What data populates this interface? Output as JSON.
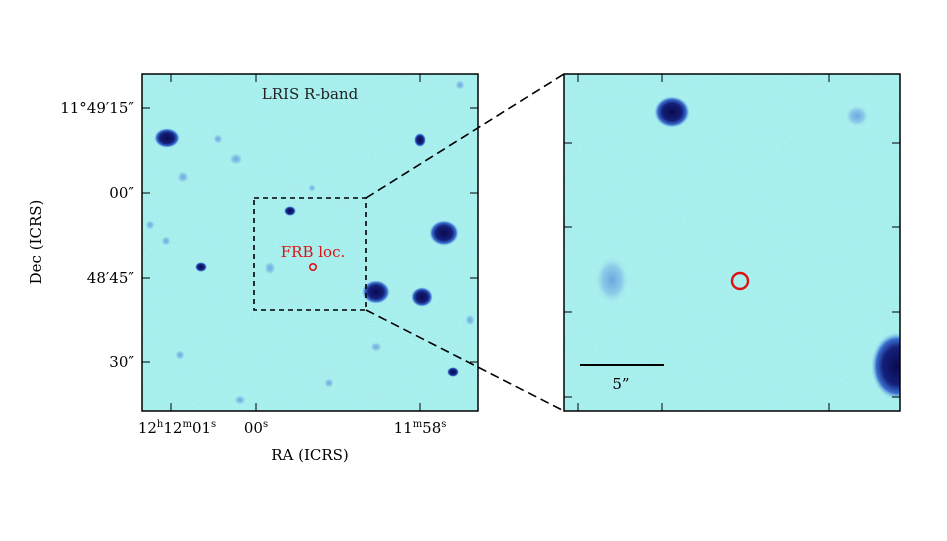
{
  "colors": {
    "background_cyan": "#aaf0ec",
    "star_deep": "#0d0d5c",
    "star_mid": "#1f3fb0",
    "frame": "#000000",
    "frb_red": "#dd1111"
  },
  "left_panel": {
    "band_label": "LRIS R-band",
    "frb_label": "FRB loc.",
    "xlabel": "RA (ICRS)",
    "ylabel": "Dec (ICRS)",
    "ra_ticks": [
      {
        "h": "12",
        "m": "12",
        "s": "01"
      },
      {
        "s": "00"
      },
      {
        "m": "11",
        "s": "58"
      }
    ],
    "dec_ticks": [
      {
        "deg": "11",
        "arcmin": "49",
        "arcsec": "15"
      },
      {
        "arcsec": "00"
      },
      {
        "arcmin": "48",
        "arcsec": "45"
      },
      {
        "arcsec": "30"
      }
    ]
  },
  "right_panel": {
    "scale_label": "5”"
  }
}
